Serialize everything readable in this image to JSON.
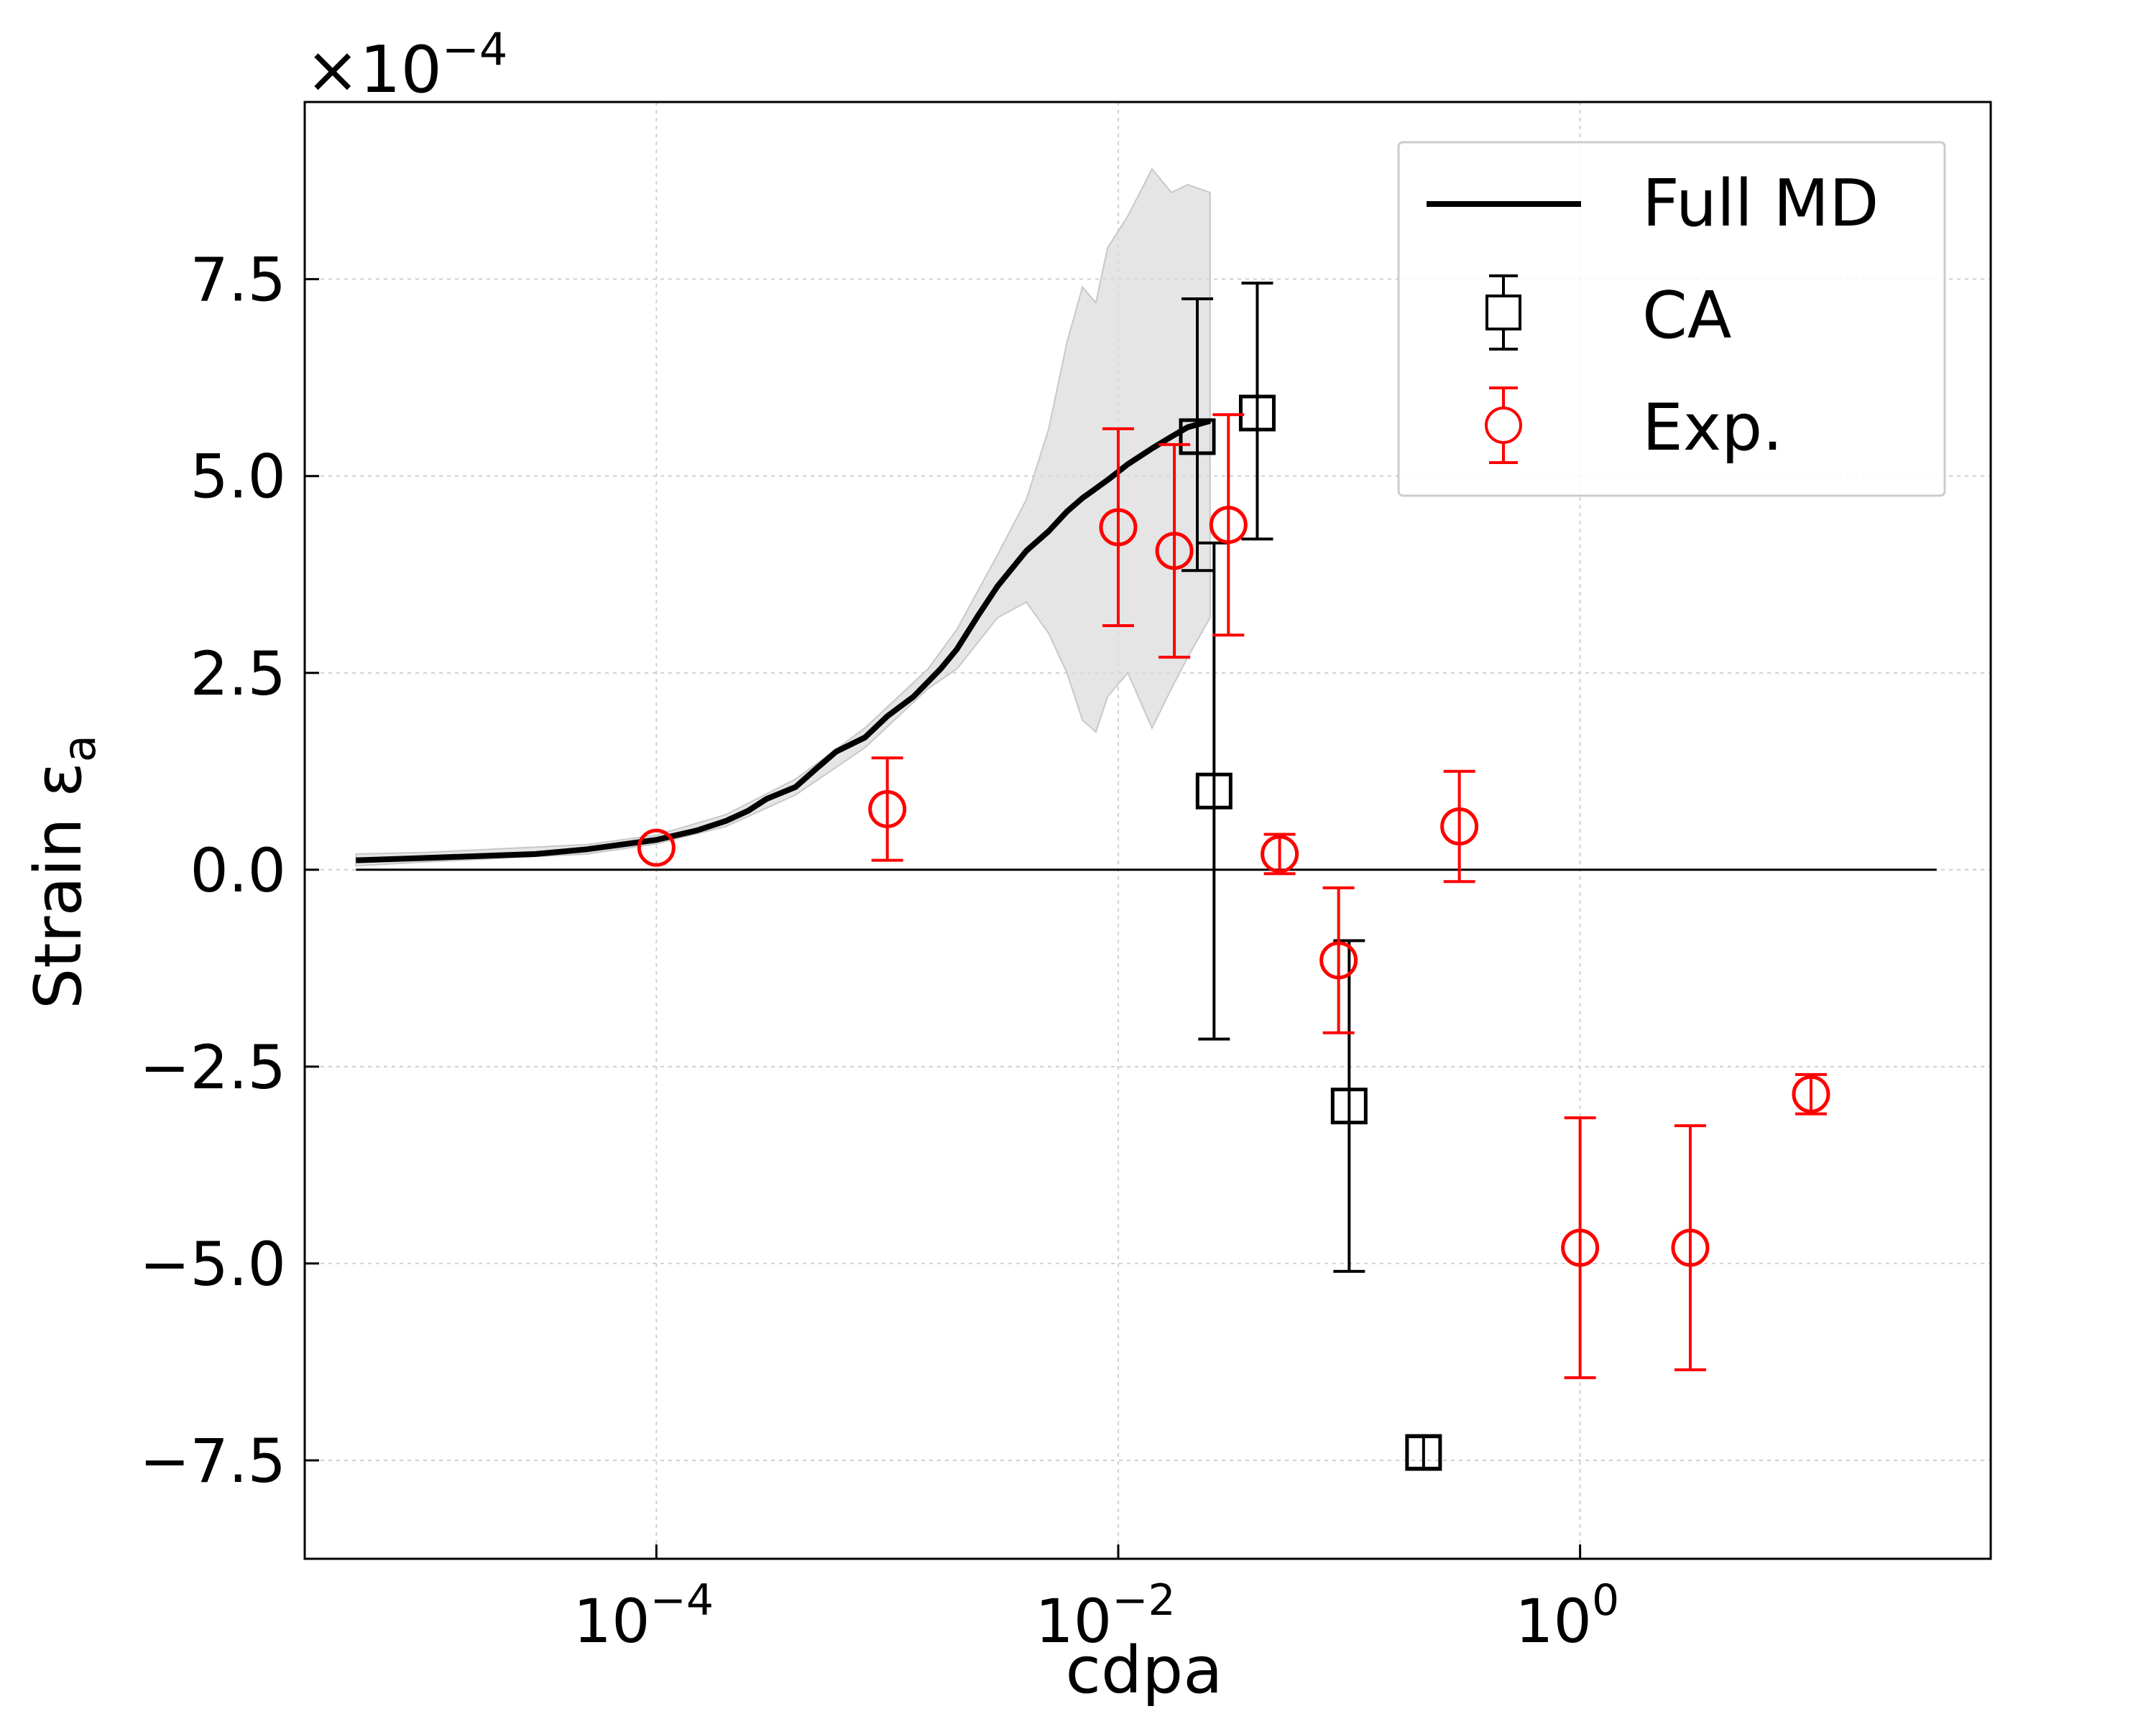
{
  "chart_data": {
    "type": "scatter",
    "xscale": "log",
    "xlabel": "cdpa",
    "ylabel_main": "Strain ε",
    "ylabel_sub": "a",
    "offset_text": {
      "mult": "×10",
      "exp": "−4"
    },
    "xlim": [
      3e-06,
      60
    ],
    "ylim": [
      -8.75,
      9.75
    ],
    "x_ticks": [
      {
        "value": 0.0001,
        "base": "10",
        "exp": "−4"
      },
      {
        "value": 0.01,
        "base": "10",
        "exp": "−2"
      },
      {
        "value": 1,
        "base": "10",
        "exp": "0"
      }
    ],
    "y_ticks": [
      {
        "value": 7.5,
        "label": "7.5"
      },
      {
        "value": 5.0,
        "label": "5.0"
      },
      {
        "value": 2.5,
        "label": "2.5"
      },
      {
        "value": 0.0,
        "label": "0.0"
      },
      {
        "value": -2.5,
        "label": "−2.5"
      },
      {
        "value": -5.0,
        "label": "−5.0"
      },
      {
        "value": -7.5,
        "label": "−7.5"
      }
    ],
    "zero_line": true,
    "grid": true,
    "legend_position": "top-right",
    "series": [
      {
        "name": "Full MD",
        "kind": "line",
        "color": "#000000",
        "points": [
          [
            5e-06,
            0.12
          ],
          [
            1e-05,
            0.15
          ],
          [
            3e-05,
            0.2
          ],
          [
            5e-05,
            0.26
          ],
          [
            0.0001,
            0.38
          ],
          [
            0.00015,
            0.5
          ],
          [
            0.0002,
            0.62
          ],
          [
            0.00025,
            0.75
          ],
          [
            0.0003,
            0.9
          ],
          [
            0.0004,
            1.05
          ],
          [
            0.0005,
            1.3
          ],
          [
            0.0006,
            1.5
          ],
          [
            0.0008,
            1.68
          ],
          [
            0.001,
            1.95
          ],
          [
            0.0013,
            2.2
          ],
          [
            0.0017,
            2.55
          ],
          [
            0.002,
            2.8
          ],
          [
            0.0025,
            3.25
          ],
          [
            0.003,
            3.6
          ],
          [
            0.004,
            4.05
          ],
          [
            0.005,
            4.3
          ],
          [
            0.006,
            4.55
          ],
          [
            0.007,
            4.72
          ],
          [
            0.009,
            4.95
          ],
          [
            0.011,
            5.15
          ],
          [
            0.014,
            5.35
          ],
          [
            0.017,
            5.5
          ],
          [
            0.02,
            5.62
          ],
          [
            0.025,
            5.7
          ]
        ],
        "band": [
          [
            5e-06,
            0.05,
            0.2
          ],
          [
            1e-05,
            0.1,
            0.22
          ],
          [
            5e-05,
            0.2,
            0.32
          ],
          [
            0.0001,
            0.33,
            0.44
          ],
          [
            0.0002,
            0.55,
            0.7
          ],
          [
            0.0004,
            0.95,
            1.15
          ],
          [
            0.0008,
            1.55,
            1.8
          ],
          [
            0.0015,
            2.3,
            2.55
          ],
          [
            0.002,
            2.55,
            3.05
          ],
          [
            0.003,
            3.2,
            4.0
          ],
          [
            0.004,
            3.4,
            4.7
          ],
          [
            0.005,
            3.0,
            5.6
          ],
          [
            0.006,
            2.5,
            6.7
          ],
          [
            0.007,
            1.9,
            7.4
          ],
          [
            0.008,
            1.75,
            7.2
          ],
          [
            0.009,
            2.2,
            7.9
          ],
          [
            0.011,
            2.5,
            8.3
          ],
          [
            0.014,
            1.8,
            8.9
          ],
          [
            0.017,
            2.3,
            8.6
          ],
          [
            0.02,
            2.7,
            8.7
          ],
          [
            0.025,
            3.2,
            8.6
          ]
        ]
      },
      {
        "name": "CA",
        "kind": "errorbar",
        "marker": "square",
        "color": "#000000",
        "points": [
          {
            "x": 0.022,
            "y": 5.5,
            "yerr_low": 1.7,
            "yerr_high": 1.75
          },
          {
            "x": 0.026,
            "y": 1.0,
            "yerr_low": 3.15,
            "yerr_high": 3.15
          },
          {
            "x": 0.04,
            "y": 5.8,
            "yerr_low": 1.6,
            "yerr_high": 1.65
          },
          {
            "x": 0.1,
            "y": -3.0,
            "yerr_low": 2.1,
            "yerr_high": 2.1
          },
          {
            "x": 0.21,
            "y": -7.4,
            "yerr_low": 0.2,
            "yerr_high": 0.2
          }
        ]
      },
      {
        "name": "Exp.",
        "kind": "errorbar",
        "marker": "circle",
        "color": "#ff0000",
        "points": [
          {
            "x": 0.0001,
            "y": 0.28,
            "yerr_low": 0.0,
            "yerr_high": 0.0
          },
          {
            "x": 0.001,
            "y": 0.77,
            "yerr_low": 0.65,
            "yerr_high": 0.65
          },
          {
            "x": 0.01,
            "y": 4.35,
            "yerr_low": 1.25,
            "yerr_high": 1.25
          },
          {
            "x": 0.0175,
            "y": 4.05,
            "yerr_low": 1.35,
            "yerr_high": 1.35
          },
          {
            "x": 0.03,
            "y": 4.38,
            "yerr_low": 1.4,
            "yerr_high": 1.4
          },
          {
            "x": 0.05,
            "y": 0.2,
            "yerr_low": 0.25,
            "yerr_high": 0.25
          },
          {
            "x": 0.09,
            "y": -1.15,
            "yerr_low": 0.92,
            "yerr_high": 0.92
          },
          {
            "x": 0.3,
            "y": 0.55,
            "yerr_low": 0.7,
            "yerr_high": 0.7
          },
          {
            "x": 1.0,
            "y": -4.8,
            "yerr_low": 1.65,
            "yerr_high": 1.65
          },
          {
            "x": 3.0,
            "y": -4.8,
            "yerr_low": 1.55,
            "yerr_high": 1.55
          },
          {
            "x": 10.0,
            "y": -2.85,
            "yerr_low": 0.25,
            "yerr_high": 0.25
          }
        ]
      }
    ]
  }
}
